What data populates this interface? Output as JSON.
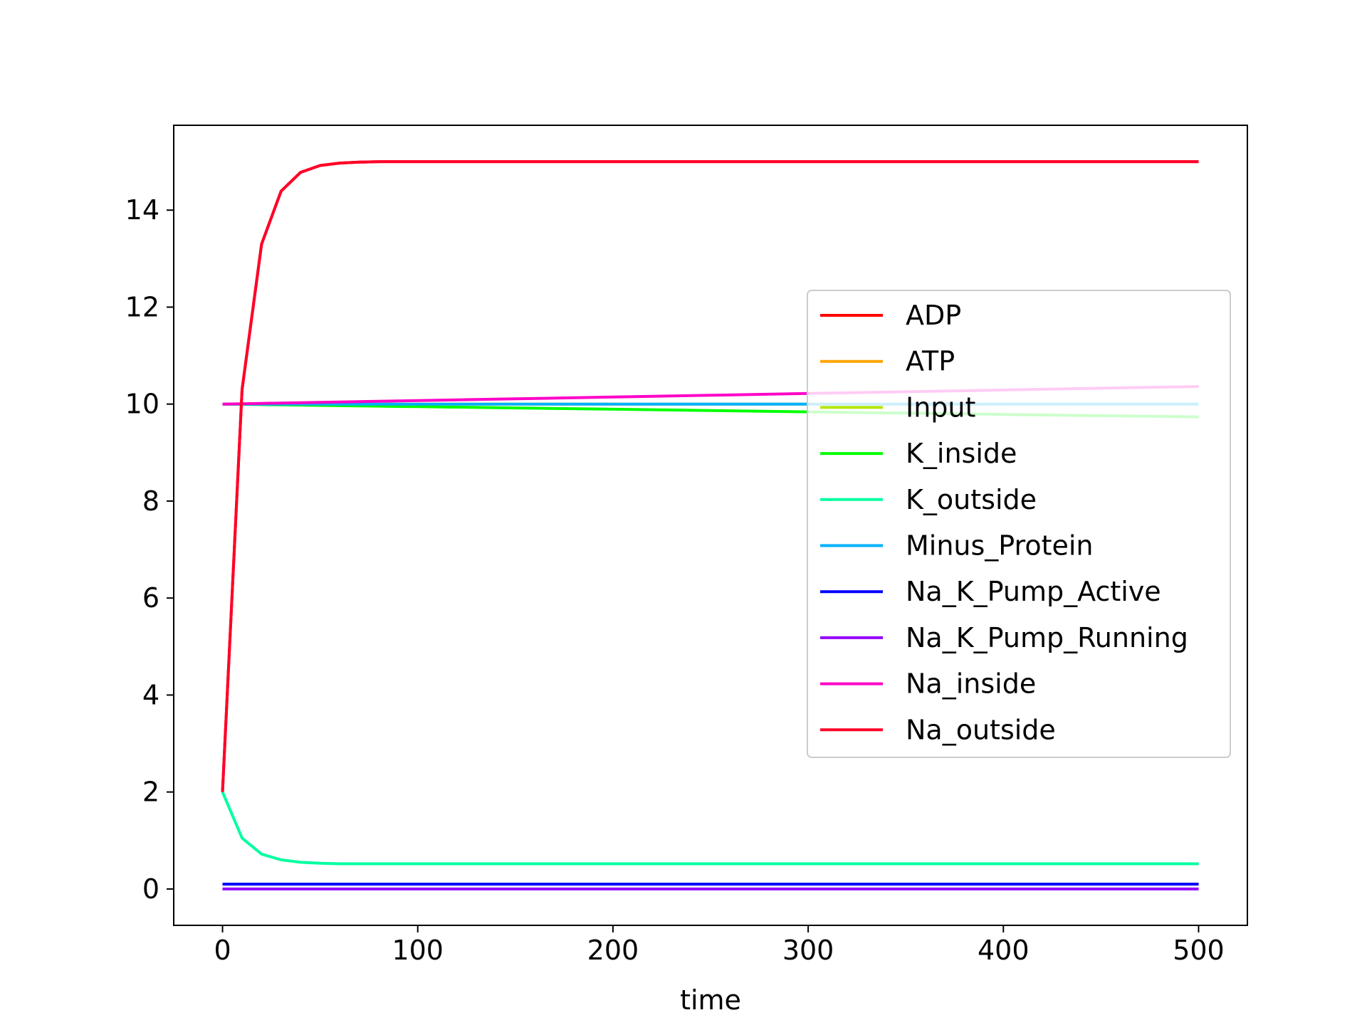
{
  "chart_data": {
    "type": "line",
    "title": "",
    "xlabel": "time",
    "ylabel": "",
    "xlim": [
      -25,
      525
    ],
    "ylim": [
      -0.75,
      15.75
    ],
    "xticks": [
      0,
      100,
      200,
      300,
      400,
      500
    ],
    "yticks": [
      0,
      2,
      4,
      6,
      8,
      10,
      12,
      14
    ],
    "grid": false,
    "legend_position": "center-right",
    "x": [
      0,
      10,
      20,
      30,
      40,
      50,
      60,
      70,
      80,
      90,
      100,
      150,
      200,
      250,
      300,
      350,
      400,
      450,
      500
    ],
    "series": [
      {
        "name": "ADP",
        "color": "#ff0000",
        "values": [
          2,
          10.3,
          13.3,
          14.39,
          14.78,
          14.92,
          14.97,
          14.99,
          15,
          15,
          15,
          15,
          15,
          15,
          15,
          15,
          15,
          15,
          15
        ]
      },
      {
        "name": "ATP",
        "color": "#ffa500",
        "values": [
          0.1,
          0.1,
          0.1,
          0.1,
          0.1,
          0.1,
          0.1,
          0.1,
          0.1,
          0.1,
          0.1,
          0.1,
          0.1,
          0.1,
          0.1,
          0.1,
          0.1,
          0.1,
          0.1
        ]
      },
      {
        "name": "Input",
        "color": "#b4e60a",
        "values": [
          10,
          10,
          10,
          10,
          10,
          10,
          10,
          10,
          10,
          10,
          10,
          10,
          10,
          10,
          10,
          10,
          10,
          10,
          10
        ]
      },
      {
        "name": "K_inside",
        "color": "#00ff00",
        "values": [
          10,
          9.995,
          9.99,
          9.984,
          9.979,
          9.974,
          9.968,
          9.963,
          9.957,
          9.952,
          9.947,
          9.92,
          9.894,
          9.867,
          9.84,
          9.813,
          9.787,
          9.76,
          9.735
        ]
      },
      {
        "name": "K_outside",
        "color": "#00ffa0",
        "values": [
          2,
          1.05,
          0.72,
          0.6,
          0.55,
          0.53,
          0.52,
          0.52,
          0.52,
          0.52,
          0.52,
          0.52,
          0.52,
          0.52,
          0.52,
          0.52,
          0.52,
          0.52,
          0.52
        ]
      },
      {
        "name": "Minus_Protein",
        "color": "#00b0ff",
        "values": [
          10,
          10,
          10,
          10,
          10,
          10,
          10,
          10,
          10,
          10,
          10,
          10,
          10,
          10,
          10,
          10,
          10,
          10,
          10
        ]
      },
      {
        "name": "Na_K_Pump_Active",
        "color": "#0000ff",
        "values": [
          0.1,
          0.1,
          0.1,
          0.1,
          0.1,
          0.1,
          0.1,
          0.1,
          0.1,
          0.1,
          0.1,
          0.1,
          0.1,
          0.1,
          0.1,
          0.1,
          0.1,
          0.1,
          0.1
        ]
      },
      {
        "name": "Na_K_Pump_Running",
        "color": "#9600ff",
        "values": [
          0,
          0,
          0,
          0,
          0,
          0,
          0,
          0,
          0,
          0,
          0,
          0,
          0,
          0,
          0,
          0,
          0,
          0,
          0
        ]
      },
      {
        "name": "Na_inside",
        "color": "#ff00c8",
        "values": [
          10,
          10.007,
          10.015,
          10.022,
          10.029,
          10.036,
          10.044,
          10.051,
          10.058,
          10.065,
          10.073,
          10.109,
          10.145,
          10.182,
          10.218,
          10.254,
          10.291,
          10.327,
          10.363
        ]
      },
      {
        "name": "Na_outside",
        "color": "#ff0028",
        "values": [
          2,
          10.3,
          13.3,
          14.39,
          14.78,
          14.92,
          14.97,
          14.99,
          15,
          15,
          15,
          15,
          15,
          15,
          15,
          15,
          15,
          15,
          15
        ]
      }
    ]
  }
}
